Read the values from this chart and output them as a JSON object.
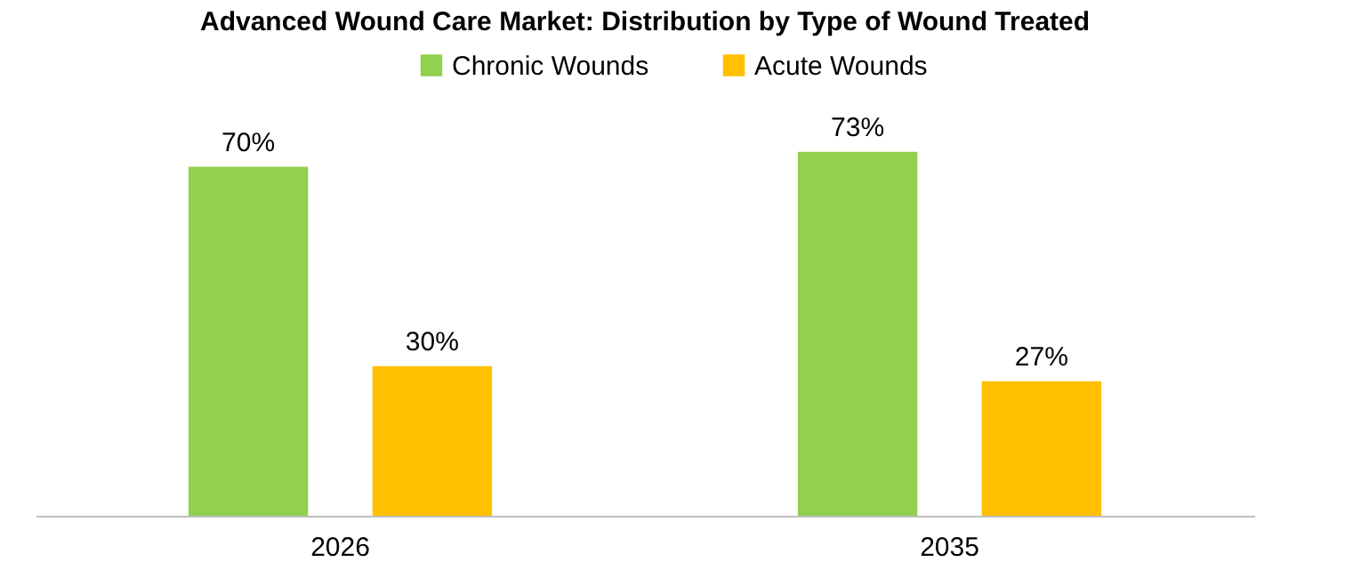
{
  "chart_data": {
    "type": "bar",
    "title": "Advanced Wound Care Market: Distribution by Type of Wound Treated",
    "categories": [
      "2026",
      "2035"
    ],
    "series": [
      {
        "name": "Chronic Wounds",
        "color": "#92d050",
        "values": [
          70,
          73
        ],
        "value_labels": [
          "70%",
          "73%"
        ]
      },
      {
        "name": "Acute Wounds",
        "color": "#ffc000",
        "values": [
          30,
          27
        ],
        "value_labels": [
          "30%",
          "27%"
        ]
      }
    ],
    "legend": "top",
    "grid": false
  }
}
